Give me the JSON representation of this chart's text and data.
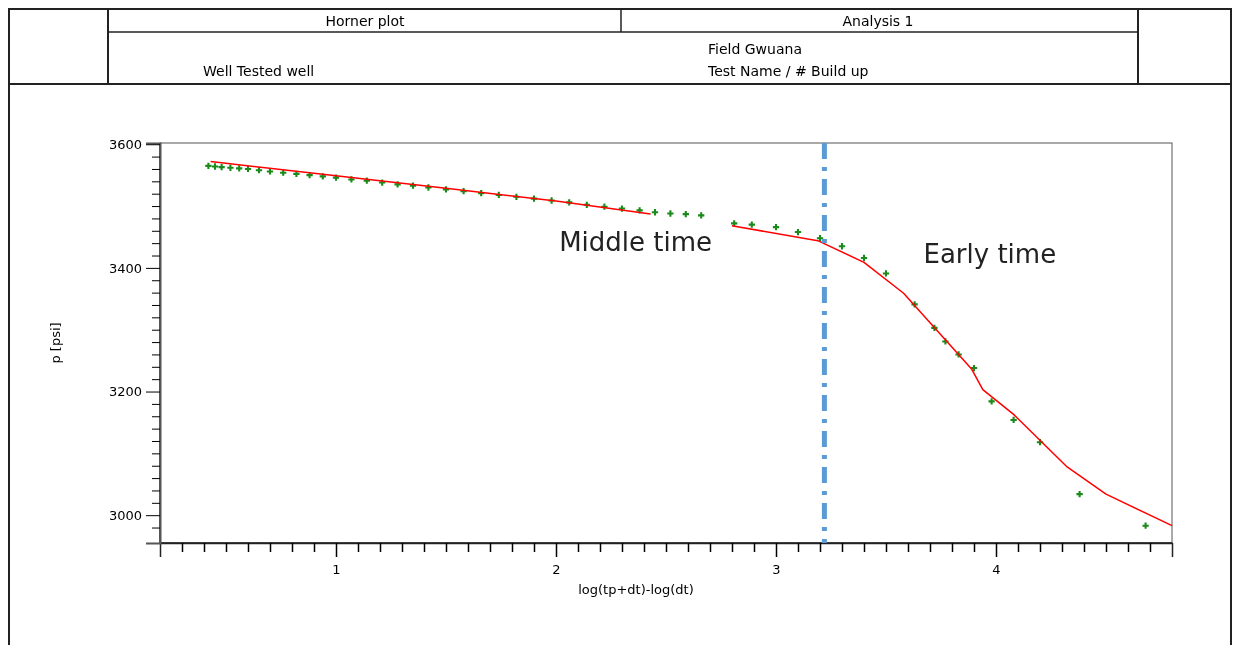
{
  "chart_data": {
    "type": "scatter",
    "title": "Horner plot",
    "subtitle": "Analysis 1",
    "annotations": [
      "Well  Tested well",
      "Field  Gwuana",
      "Test Name / #  Build up",
      "Middle time",
      "Early time"
    ],
    "xlabel": "log(tp+dt)-log(dt)",
    "ylabel": "p [psi]",
    "xlim": [
      0.2,
      4.8
    ],
    "ylim": [
      2955,
      3602
    ],
    "xticks": [
      {
        "value": 0.3,
        "label": null
      },
      {
        "value": 0.4,
        "label": null
      },
      {
        "value": 0.5,
        "label": null
      },
      {
        "value": 0.6,
        "label": null
      },
      {
        "value": 0.7,
        "label": null
      },
      {
        "value": 0.8,
        "label": null
      },
      {
        "value": 0.9,
        "label": null
      },
      1,
      {
        "value": 1.1,
        "label": null
      },
      {
        "value": 1.2,
        "label": null
      },
      {
        "value": 1.3,
        "label": null
      },
      {
        "value": 1.4,
        "label": null
      },
      {
        "value": 1.5,
        "label": null
      },
      {
        "value": 1.6,
        "label": null
      },
      {
        "value": 1.7,
        "label": null
      },
      {
        "value": 1.8,
        "label": null
      },
      {
        "value": 1.9,
        "label": null
      },
      2,
      {
        "value": 2.1,
        "label": null
      },
      {
        "value": 2.2,
        "label": null
      },
      {
        "value": 2.3,
        "label": null
      },
      {
        "value": 2.4,
        "label": null
      },
      {
        "value": 2.5,
        "label": null
      },
      {
        "value": 2.6,
        "label": null
      },
      {
        "value": 2.7,
        "label": null
      },
      {
        "value": 2.8,
        "label": null
      },
      {
        "value": 2.9,
        "label": null
      },
      3,
      {
        "value": 3.1,
        "label": null
      },
      {
        "value": 3.2,
        "label": null
      },
      {
        "value": 3.3,
        "label": null
      },
      {
        "value": 3.4,
        "label": null
      },
      {
        "value": 3.5,
        "label": null
      },
      {
        "value": 3.6,
        "label": null
      },
      {
        "value": 3.7,
        "label": null
      },
      {
        "value": 3.8,
        "label": null
      },
      {
        "value": 3.9,
        "label": null
      },
      4,
      {
        "value": 4.1,
        "label": null
      },
      {
        "value": 4.2,
        "label": null
      },
      {
        "value": 4.3,
        "label": null
      },
      {
        "value": 4.4,
        "label": null
      },
      {
        "value": 4.5,
        "label": null
      },
      {
        "value": 4.6,
        "label": null
      },
      {
        "value": 4.7,
        "label": null
      }
    ],
    "yticks": [
      {
        "value": 2980,
        "label": null
      },
      3000,
      {
        "value": 3020,
        "label": null
      },
      {
        "value": 3040,
        "label": null
      },
      {
        "value": 3060,
        "label": null
      },
      {
        "value": 3080,
        "label": null
      },
      {
        "value": 3100,
        "label": null
      },
      {
        "value": 3120,
        "label": null
      },
      {
        "value": 3140,
        "label": null
      },
      {
        "value": 3160,
        "label": null
      },
      {
        "value": 3180,
        "label": null
      },
      3200,
      {
        "value": 3220,
        "label": null
      },
      {
        "value": 3240,
        "label": null
      },
      {
        "value": 3260,
        "label": null
      },
      {
        "value": 3280,
        "label": null
      },
      {
        "value": 3300,
        "label": null
      },
      {
        "value": 3320,
        "label": null
      },
      {
        "value": 3340,
        "label": null
      },
      {
        "value": 3360,
        "label": null
      },
      {
        "value": 3380,
        "label": null
      },
      3400,
      {
        "value": 3420,
        "label": null
      },
      {
        "value": 3440,
        "label": null
      },
      {
        "value": 3460,
        "label": null
      },
      {
        "value": 3480,
        "label": null
      },
      {
        "value": 3500,
        "label": null
      },
      {
        "value": 3520,
        "label": null
      },
      {
        "value": 3540,
        "label": null
      },
      {
        "value": 3560,
        "label": null
      },
      {
        "value": 3580,
        "label": null
      },
      3600
    ],
    "grid": false,
    "ref_lines": [
      {
        "axis": "x",
        "value": 3.22,
        "color": "#5b9bd5",
        "line_style": "dashdot"
      }
    ],
    "series": [
      {
        "color": "#1a8a1a",
        "marker": "cross",
        "x": [
          0.42,
          0.45,
          0.48,
          0.52,
          0.56,
          0.6,
          0.65,
          0.7,
          0.76,
          0.82,
          0.88,
          0.94,
          1.0,
          1.07,
          1.14,
          1.21,
          1.28,
          1.35,
          1.42,
          1.5,
          1.58,
          1.66,
          1.74,
          1.82,
          1.9,
          1.98,
          2.06,
          2.14,
          2.22,
          2.3,
          2.38,
          2.45,
          2.52,
          2.59,
          2.66,
          2.81,
          2.89,
          3.0,
          3.1,
          3.2,
          3.3,
          3.4,
          3.5,
          3.63,
          3.72,
          3.77,
          3.83,
          3.9,
          3.98,
          4.08,
          4.2,
          4.38,
          4.68
        ],
        "values": [
          3565,
          3564,
          3563,
          3562,
          3561,
          3560,
          3558,
          3556,
          3554,
          3552,
          3550,
          3548,
          3546,
          3543,
          3541,
          3538,
          3535,
          3533,
          3530,
          3527,
          3524,
          3521,
          3518,
          3515,
          3512,
          3509,
          3506,
          3502,
          3499,
          3496,
          3493,
          3490,
          3488,
          3487,
          3485,
          3472,
          3470,
          3466,
          3458,
          3448,
          3435,
          3416,
          3391,
          3341,
          3303,
          3281,
          3260,
          3238,
          3184,
          3154,
          3118,
          3034,
          2983
        ]
      },
      {
        "type": "line",
        "color": "#ff0000",
        "marker": "none",
        "line_style": "solid",
        "x": [
          0.43,
          1.0,
          1.5,
          2.0,
          2.43,
          2.6,
          2.8,
          3.19,
          3.4,
          3.58,
          3.89,
          3.94,
          4.08,
          4.32,
          4.5,
          4.8
        ],
        "values": [
          3572,
          3549,
          3529,
          3508,
          3487,
          null,
          3468,
          3444,
          3409,
          3359,
          3236,
          3203,
          3163,
          3079,
          3034,
          2983
        ]
      }
    ]
  }
}
